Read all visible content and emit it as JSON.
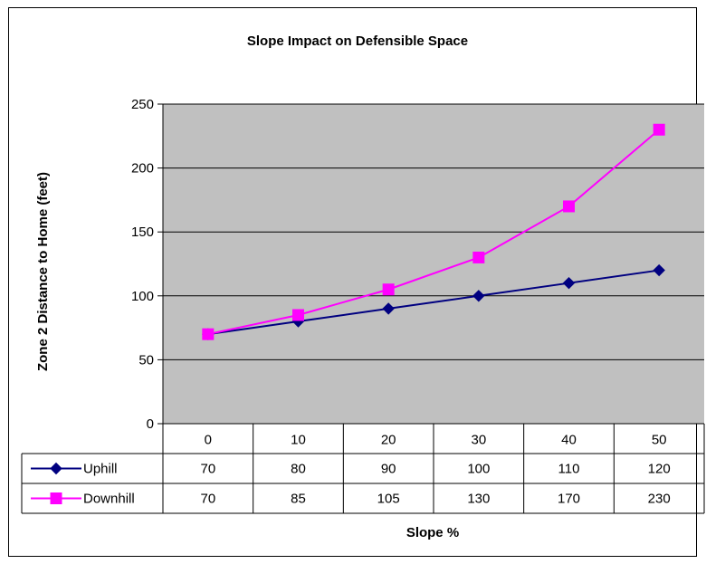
{
  "chart_data": {
    "type": "line",
    "title": "Slope Impact on Defensible Space",
    "xlabel": "Slope %",
    "ylabel": "Zone 2 Distance to Home (feet)",
    "categories": [
      "0",
      "10",
      "20",
      "30",
      "40",
      "50"
    ],
    "ylim": [
      0,
      250
    ],
    "yticks": [
      "0",
      "50",
      "100",
      "150",
      "200",
      "250"
    ],
    "grid": true,
    "data_table": true,
    "series": [
      {
        "name": "Uphill",
        "values": [
          70,
          80,
          90,
          100,
          110,
          120
        ],
        "color": "#000080",
        "marker": "diamond"
      },
      {
        "name": "Downhill",
        "values": [
          70,
          85,
          105,
          130,
          170,
          230
        ],
        "color": "#FF00FF",
        "marker": "square"
      }
    ],
    "plot_background": "#C0C0C0"
  }
}
